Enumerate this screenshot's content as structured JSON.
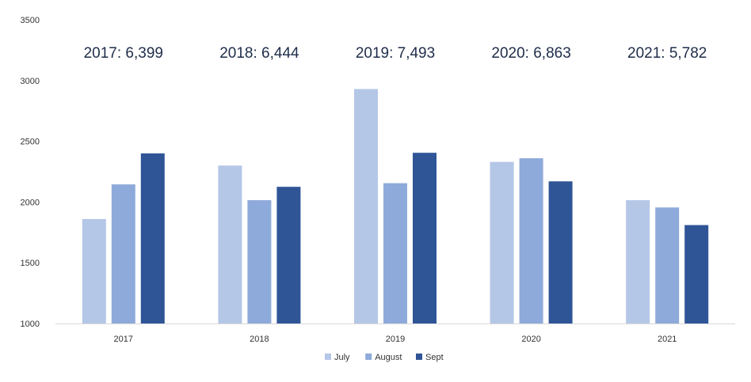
{
  "chart_data": {
    "type": "bar",
    "categories": [
      "2017",
      "2018",
      "2019",
      "2020",
      "2021"
    ],
    "series": [
      {
        "name": "July",
        "color": "#b4c7e7",
        "values": [
          1860,
          2300,
          2930,
          2330,
          2015
        ]
      },
      {
        "name": "August",
        "color": "#8eaadb",
        "values": [
          2145,
          2015,
          2155,
          2360,
          1955
        ]
      },
      {
        "name": "Sept",
        "color": "#2f5597",
        "values": [
          2400,
          2125,
          2405,
          2170,
          1810
        ]
      }
    ],
    "ylim": [
      1000,
      3500
    ],
    "yticks": [
      "1000",
      "1500",
      "2000",
      "2500",
      "3000",
      "3500"
    ],
    "grid": false,
    "legend": "bottom-center",
    "annotations": [
      "2017: 6,399",
      "2018: 6,444",
      "2019: 7,493",
      "2020: 6,863",
      "2021: 5,782"
    ]
  }
}
